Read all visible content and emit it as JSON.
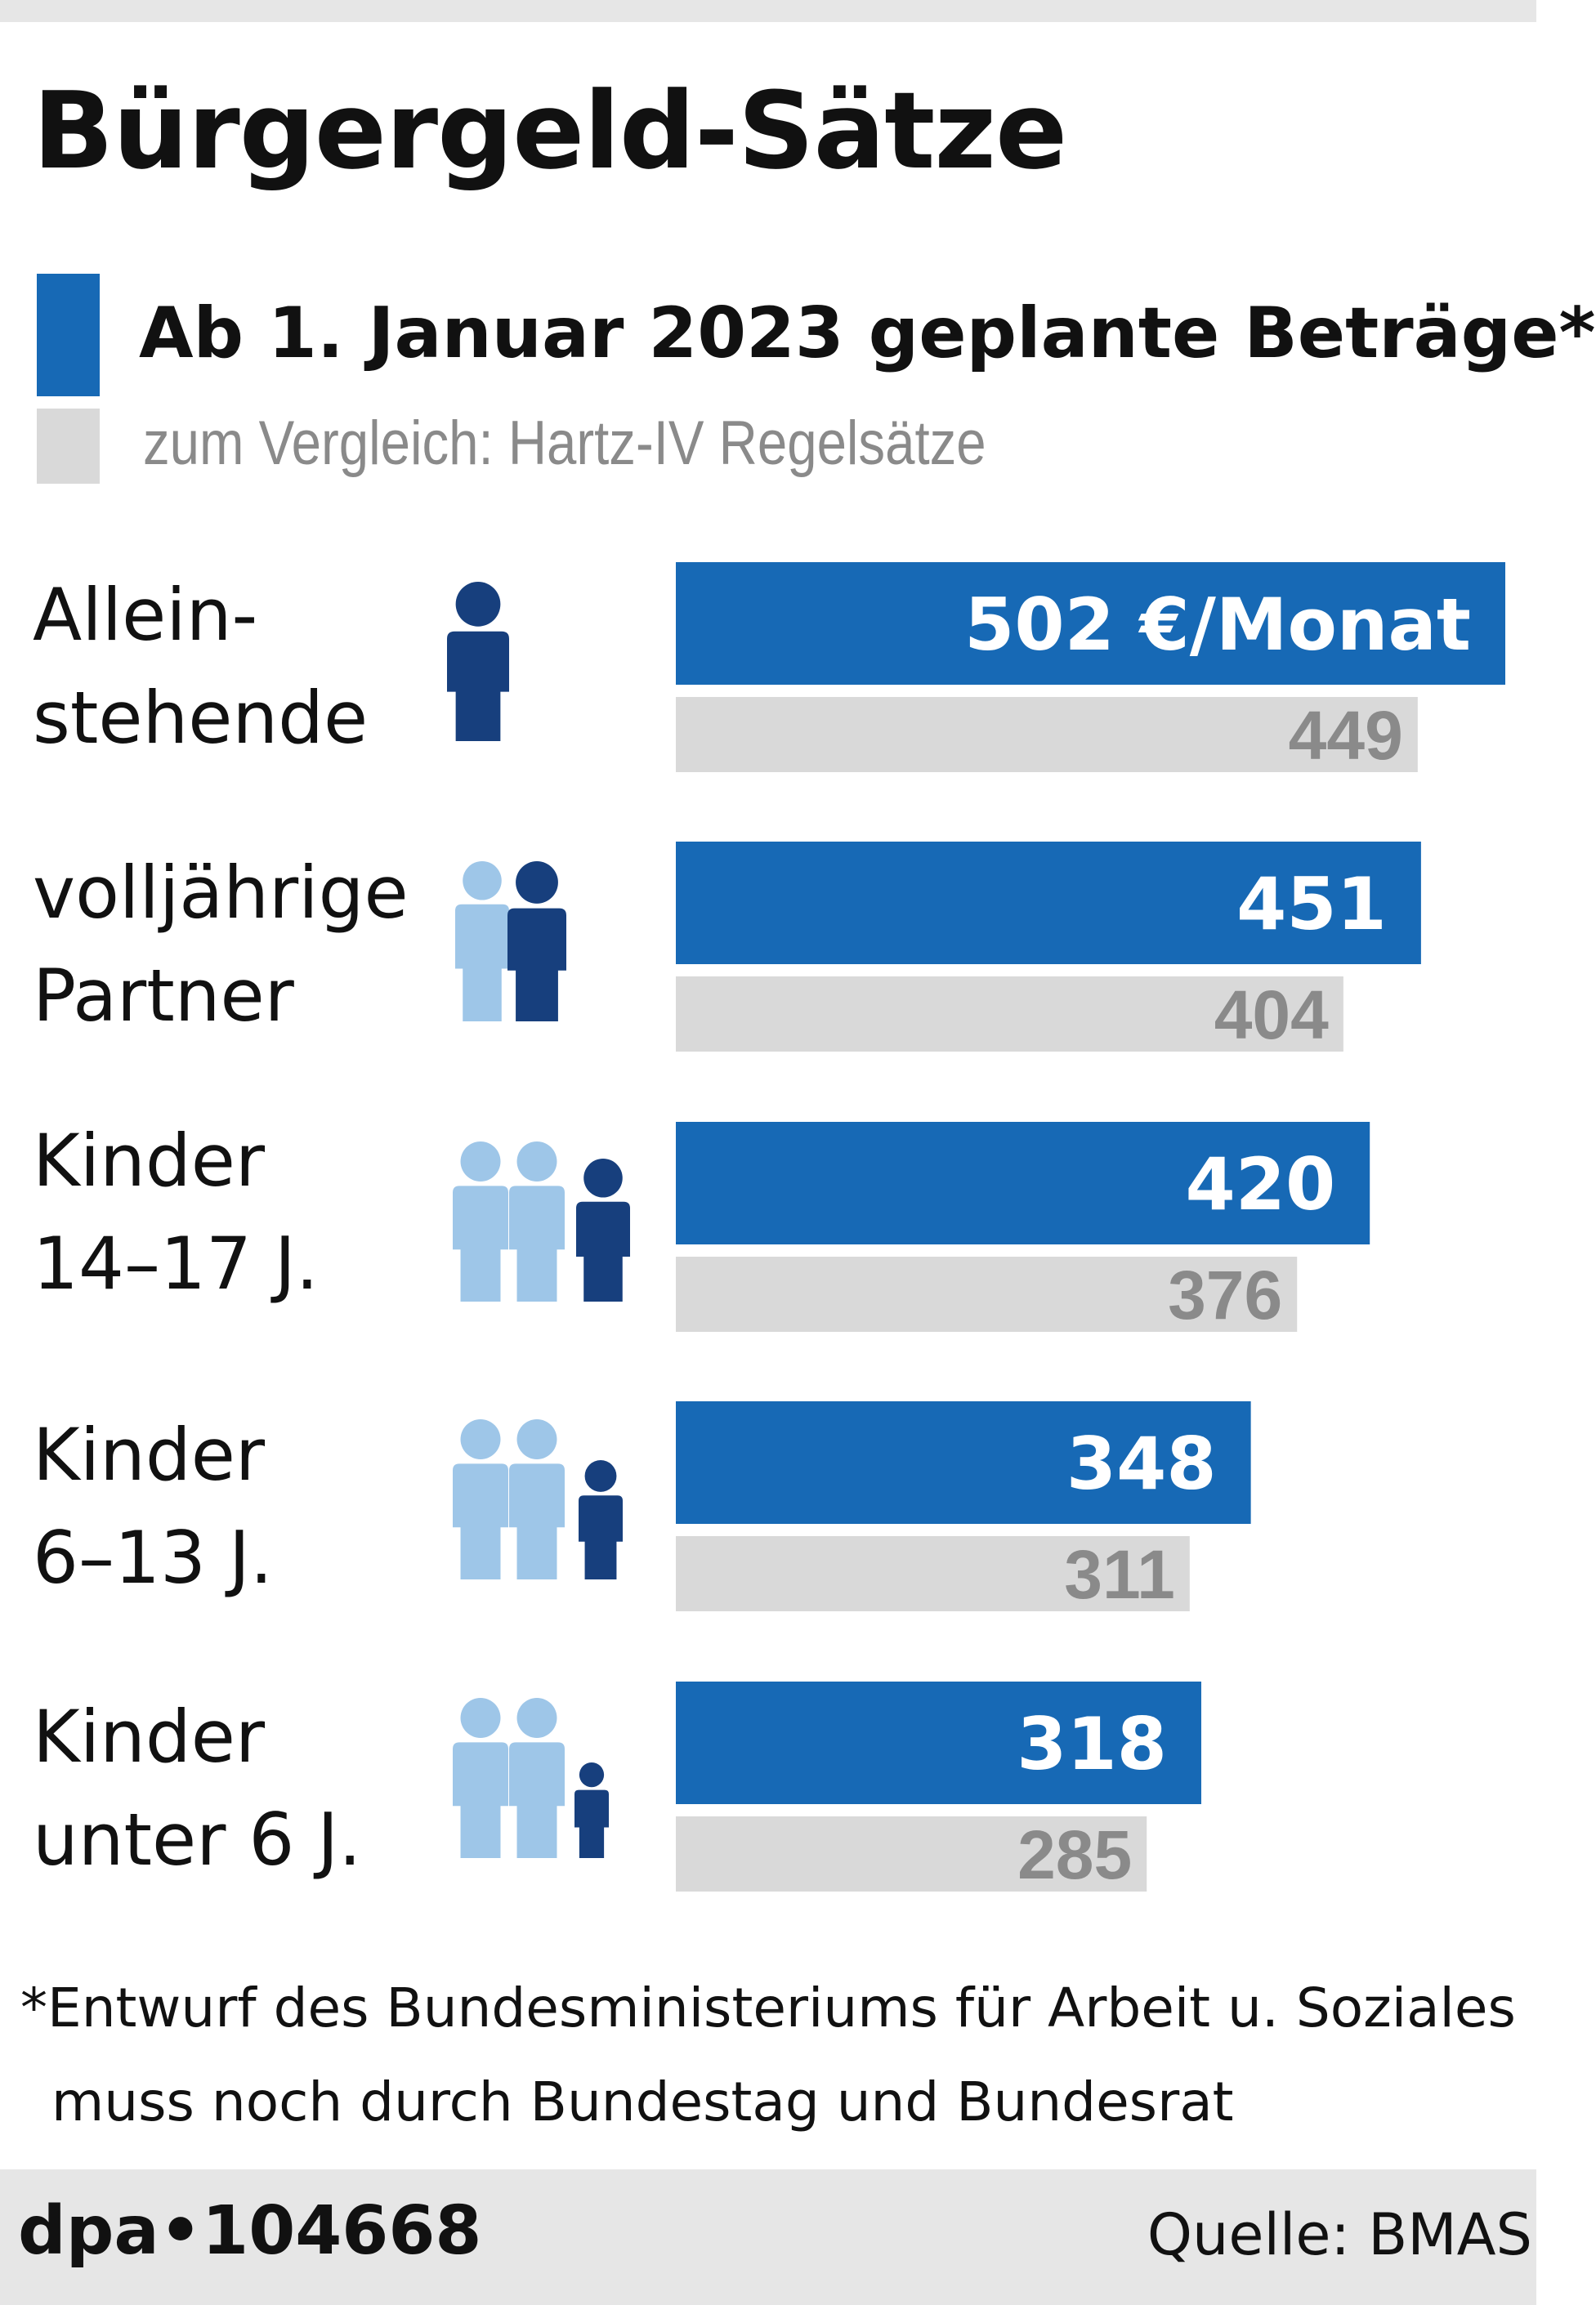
{
  "title": "Bürgergeld-Sätze",
  "legend": {
    "new": "Ab 1. Januar 2023 geplante Beträge*",
    "old": "zum Vergleich: Hartz-IV Regelsätze"
  },
  "rows": [
    {
      "label_line1": "Allein-",
      "label_line2": "stehende",
      "icon": "single-adult-icon",
      "new_label": "502 €/Monat",
      "old_label": "449"
    },
    {
      "label_line1": "volljährige",
      "label_line2": "Partner",
      "icon": "two-adults-icon",
      "new_label": "451",
      "old_label": "404"
    },
    {
      "label_line1": "Kinder",
      "label_line2": "14–17 J.",
      "icon": "teen-child-icon",
      "new_label": "420",
      "old_label": "376"
    },
    {
      "label_line1": "Kinder",
      "label_line2": "6–13 J.",
      "icon": "school-child-icon",
      "new_label": "348",
      "old_label": "311"
    },
    {
      "label_line1": "Kinder",
      "label_line2": "unter 6 J.",
      "icon": "small-child-icon",
      "new_label": "318",
      "old_label": "285"
    }
  ],
  "chart_data": {
    "type": "bar",
    "orientation": "horizontal",
    "title": "Bürgergeld-Sätze",
    "categories": [
      "Allein-stehende",
      "volljährige Partner",
      "Kinder 14–17 J.",
      "Kinder 6–13 J.",
      "Kinder unter 6 J."
    ],
    "series": [
      {
        "name": "Ab 1. Januar 2023 geplante Beträge*",
        "values": [
          502,
          451,
          420,
          348,
          318
        ],
        "color": "#1769b5"
      },
      {
        "name": "zum Vergleich: Hartz-IV Regelsätze",
        "values": [
          449,
          404,
          376,
          311,
          285
        ],
        "color": "#d9d9d9"
      }
    ],
    "unit": "€/Monat",
    "xlim": [
      0,
      502
    ],
    "grid": false,
    "legend_position": "top-left"
  },
  "colors": {
    "new_bar": "#1769b5",
    "old_bar": "#d9d9d9",
    "icon_dark": "#173f7d",
    "icon_light": "#9ec6e8"
  },
  "footnote": {
    "line1": "*Entwurf des Bundesministeriums für Arbeit u. Soziales",
    "line2": "muss noch durch Bundestag und Bundesrat"
  },
  "credit": "dpa•104668",
  "source": "Quelle: BMAS"
}
